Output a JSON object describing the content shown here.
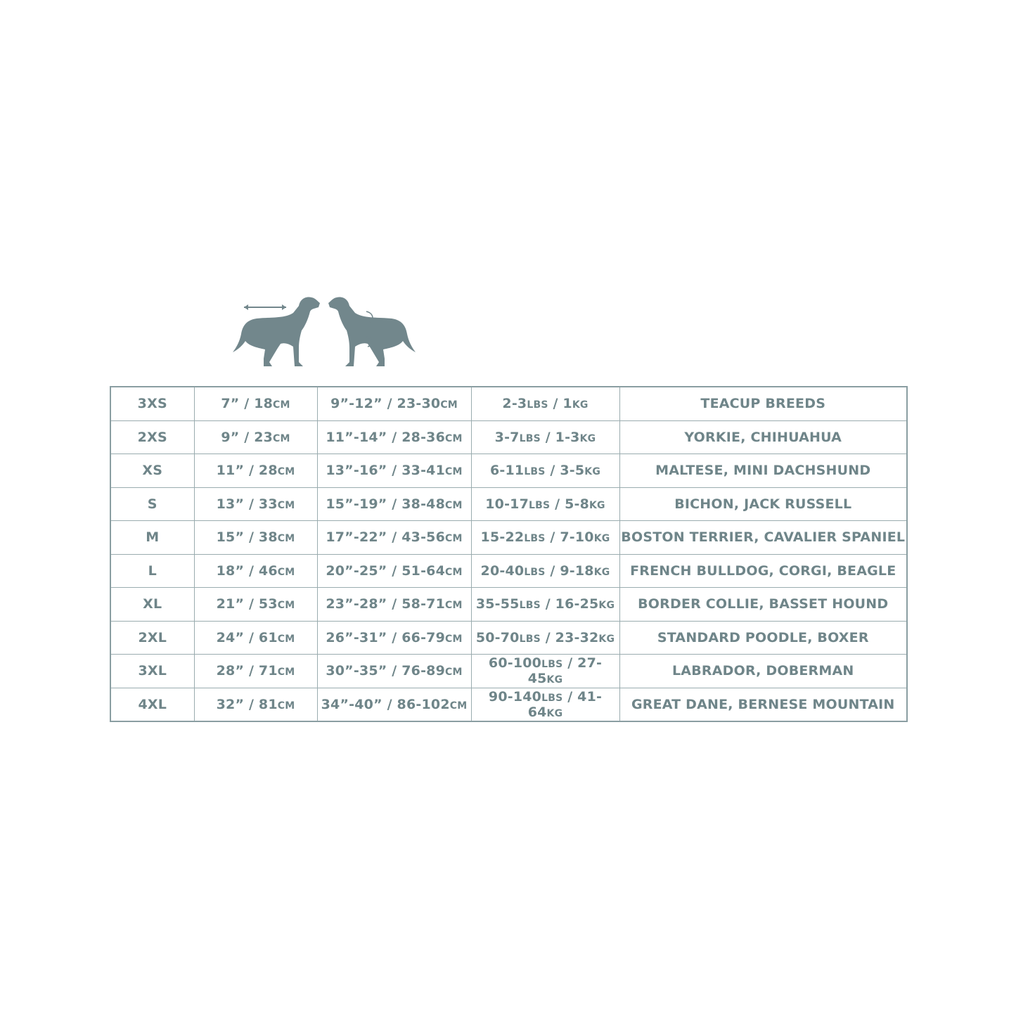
{
  "colors": {
    "text": "#6f8589",
    "border": "#8a9ea2",
    "silhouette": "#72878c"
  },
  "icons": [
    "dog-back-length-icon",
    "dog-neck-chest-girth-icon"
  ],
  "rows": [
    [
      [
        {
          "t": "3XS"
        }
      ],
      [
        {
          "t": "7” / 18"
        },
        {
          "t": "CM",
          "u": 1
        }
      ],
      [
        {
          "t": "9”-12” / 23-30"
        },
        {
          "t": "CM",
          "u": 1
        }
      ],
      [
        {
          "t": "2-3"
        },
        {
          "t": "LBS",
          "u": 1
        },
        {
          "t": " / 1"
        },
        {
          "t": "KG",
          "u": 1
        }
      ],
      [
        {
          "t": "TEACUP BREEDS"
        }
      ]
    ],
    [
      [
        {
          "t": "2XS"
        }
      ],
      [
        {
          "t": "9” / 23"
        },
        {
          "t": "CM",
          "u": 1
        }
      ],
      [
        {
          "t": "11”-14” / 28-36"
        },
        {
          "t": "CM",
          "u": 1
        }
      ],
      [
        {
          "t": "3-7"
        },
        {
          "t": "LBS",
          "u": 1
        },
        {
          "t": " / 1-3"
        },
        {
          "t": "KG",
          "u": 1
        }
      ],
      [
        {
          "t": "YORKIE, CHIHUAHUA"
        }
      ]
    ],
    [
      [
        {
          "t": "XS"
        }
      ],
      [
        {
          "t": "11” / 28"
        },
        {
          "t": "CM",
          "u": 1
        }
      ],
      [
        {
          "t": "13”-16” / 33-41"
        },
        {
          "t": "CM",
          "u": 1
        }
      ],
      [
        {
          "t": "6-11"
        },
        {
          "t": "LBS",
          "u": 1
        },
        {
          "t": " / 3-5"
        },
        {
          "t": "KG",
          "u": 1
        }
      ],
      [
        {
          "t": "MALTESE, MINI DACHSHUND"
        }
      ]
    ],
    [
      [
        {
          "t": "S"
        }
      ],
      [
        {
          "t": "13” / 33"
        },
        {
          "t": "CM",
          "u": 1
        }
      ],
      [
        {
          "t": "15”-19” / 38-48"
        },
        {
          "t": "CM",
          "u": 1
        }
      ],
      [
        {
          "t": "10-17"
        },
        {
          "t": "LBS",
          "u": 1
        },
        {
          "t": " / 5-8"
        },
        {
          "t": "KG",
          "u": 1
        }
      ],
      [
        {
          "t": "BICHON, JACK RUSSELL"
        }
      ]
    ],
    [
      [
        {
          "t": "M"
        }
      ],
      [
        {
          "t": "15” / 38"
        },
        {
          "t": "CM",
          "u": 1
        }
      ],
      [
        {
          "t": "17”-22” / 43-56"
        },
        {
          "t": "CM",
          "u": 1
        }
      ],
      [
        {
          "t": "15-22"
        },
        {
          "t": "LBS",
          "u": 1
        },
        {
          "t": " / 7-10"
        },
        {
          "t": "KG",
          "u": 1
        }
      ],
      [
        {
          "t": "BOSTON TERRIER, CAVALIER SPANIEL"
        }
      ]
    ],
    [
      [
        {
          "t": "L"
        }
      ],
      [
        {
          "t": "18” / 46"
        },
        {
          "t": "CM",
          "u": 1
        }
      ],
      [
        {
          "t": "20”-25” / 51-64"
        },
        {
          "t": "CM",
          "u": 1
        }
      ],
      [
        {
          "t": "20-40"
        },
        {
          "t": "LBS",
          "u": 1
        },
        {
          "t": " / 9-18"
        },
        {
          "t": "KG",
          "u": 1
        }
      ],
      [
        {
          "t": "FRENCH BULLDOG, CORGI, BEAGLE"
        }
      ]
    ],
    [
      [
        {
          "t": "XL"
        }
      ],
      [
        {
          "t": "21” / 53"
        },
        {
          "t": "CM",
          "u": 1
        }
      ],
      [
        {
          "t": "23”-28” / 58-71"
        },
        {
          "t": "CM",
          "u": 1
        }
      ],
      [
        {
          "t": "35-55"
        },
        {
          "t": "LBS",
          "u": 1
        },
        {
          "t": " / 16-25"
        },
        {
          "t": "KG",
          "u": 1
        }
      ],
      [
        {
          "t": "BORDER COLLIE, BASSET HOUND"
        }
      ]
    ],
    [
      [
        {
          "t": "2XL"
        }
      ],
      [
        {
          "t": "24” / 61"
        },
        {
          "t": "CM",
          "u": 1
        }
      ],
      [
        {
          "t": "26”-31” / 66-79"
        },
        {
          "t": "CM",
          "u": 1
        }
      ],
      [
        {
          "t": "50-70"
        },
        {
          "t": "LBS",
          "u": 1
        },
        {
          "t": " / 23-32"
        },
        {
          "t": "KG",
          "u": 1
        }
      ],
      [
        {
          "t": "STANDARD POODLE, BOXER"
        }
      ]
    ],
    [
      [
        {
          "t": "3XL"
        }
      ],
      [
        {
          "t": "28” / 71"
        },
        {
          "t": "CM",
          "u": 1
        }
      ],
      [
        {
          "t": "30”-35” / 76-89"
        },
        {
          "t": "CM",
          "u": 1
        }
      ],
      [
        {
          "t": "60-100"
        },
        {
          "t": "LBS",
          "u": 1
        },
        {
          "t": " / 27-45"
        },
        {
          "t": "KG",
          "u": 1
        }
      ],
      [
        {
          "t": "LABRADOR, DOBERMAN"
        }
      ]
    ],
    [
      [
        {
          "t": "4XL"
        }
      ],
      [
        {
          "t": "32” / 81"
        },
        {
          "t": "CM",
          "u": 1
        }
      ],
      [
        {
          "t": "34”-40” / 86-102"
        },
        {
          "t": "CM",
          "u": 1
        }
      ],
      [
        {
          "t": "90-140"
        },
        {
          "t": "LBS",
          "u": 1
        },
        {
          "t": " / 41-64"
        },
        {
          "t": "KG",
          "u": 1
        }
      ],
      [
        {
          "t": "GREAT DANE, BERNESE MOUNTAIN"
        }
      ]
    ]
  ]
}
